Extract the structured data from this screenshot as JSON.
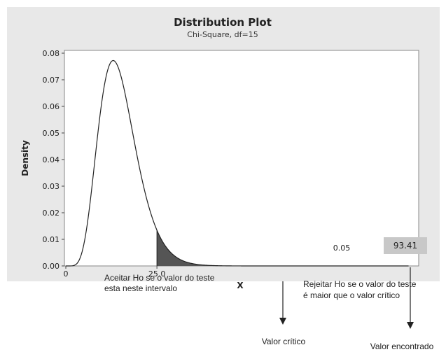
{
  "chart_data": {
    "type": "area",
    "title": "Distribution Plot",
    "subtitle": "Chi-Square, df=15",
    "xlabel": "X",
    "ylabel": "Density",
    "df": 15,
    "x_ticks": [
      "0",
      "25.0"
    ],
    "y_ticks": [
      "0.00",
      "0.01",
      "0.02",
      "0.03",
      "0.04",
      "0.05",
      "0.06",
      "0.07",
      "0.08"
    ],
    "ylim": [
      0,
      0.08
    ],
    "xlim": [
      0,
      95
    ],
    "critical_value": 25.0,
    "tail_area": "0.05",
    "observed_value": "93.41",
    "grid": false
  },
  "annotations": {
    "accept_line1": "Aceitar Ho se o valor do teste",
    "accept_line2": "esta neste intervalo",
    "reject_line1": "Rejeitar Ho se o valor do teste",
    "reject_line2": "é maior que o valor crítico",
    "critical_label": "Valor crítico",
    "observed_label": "Valor encontrado"
  },
  "colors": {
    "curve": "#222222",
    "tail_fill": "#555555",
    "panel_bg": "#e8e8e8",
    "plot_bg": "#ffffff",
    "value_box": "#c8c8c8"
  }
}
